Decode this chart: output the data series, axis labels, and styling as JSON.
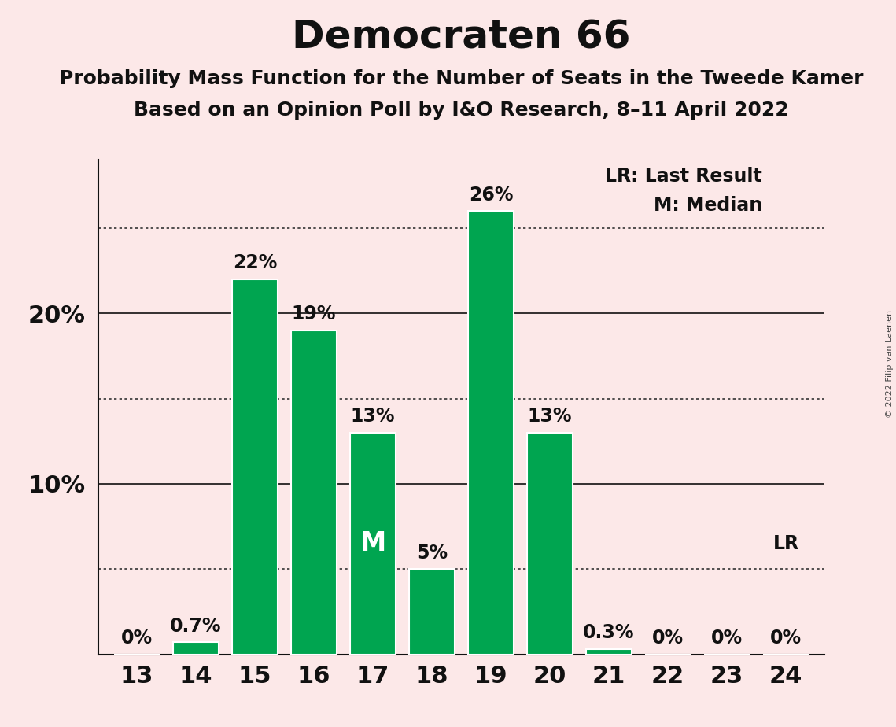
{
  "title": "Democraten 66",
  "subtitle": "Probability Mass Function for the Number of Seats in the Tweede Kamer",
  "subsubtitle": "Based on an Opinion Poll by I&O Research, 8–11 April 2022",
  "copyright": "© 2022 Filip van Laenen",
  "categories": [
    13,
    14,
    15,
    16,
    17,
    18,
    19,
    20,
    21,
    22,
    23,
    24
  ],
  "values": [
    0.0,
    0.7,
    22.0,
    19.0,
    13.0,
    5.0,
    26.0,
    13.0,
    0.3,
    0.0,
    0.0,
    0.0
  ],
  "labels": [
    "0%",
    "0.7%",
    "22%",
    "19%",
    "13%",
    "5%",
    "26%",
    "13%",
    "0.3%",
    "0%",
    "0%",
    "0%"
  ],
  "bar_color": "#00a550",
  "background_color": "#fce8e8",
  "ylim": [
    0,
    29
  ],
  "solid_lines": [
    10.0,
    20.0
  ],
  "dotted_lines": [
    5.0,
    15.0,
    25.0
  ],
  "ytick_vals": [
    10,
    20
  ],
  "ytick_labels": [
    "10%",
    "20%"
  ],
  "median_seat": 17,
  "lr_seat": 24,
  "legend_lr": "LR: Last Result",
  "legend_m": "M: Median",
  "title_fontsize": 36,
  "subtitle_fontsize": 18,
  "label_fontsize": 17,
  "ytick_fontsize": 22,
  "xtick_fontsize": 22
}
